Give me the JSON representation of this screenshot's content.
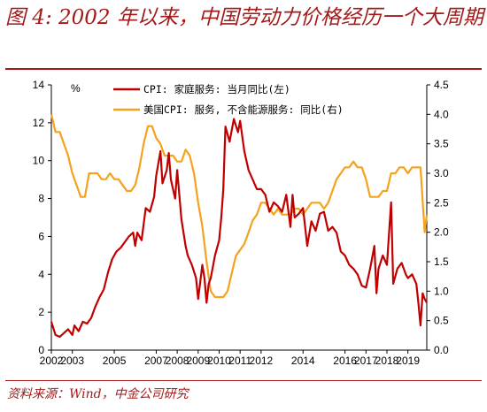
{
  "title": "图 4: 2002 年以来，中国劳动力价格经历一个大周期",
  "source": "资料来源：Wind，中金公司研究",
  "colors": {
    "accent": "#a21a1a",
    "series_left": "#c00000",
    "series_right": "#f5a21c"
  },
  "chart_data": {
    "type": "line",
    "left_axis": {
      "unit": "%",
      "ylim": [
        0,
        14
      ],
      "ticks": [
        0,
        2,
        4,
        6,
        8,
        10,
        12,
        14
      ]
    },
    "right_axis": {
      "ylim": [
        0,
        4.5
      ],
      "ticks": [
        "0.0",
        "0.5",
        "1.0",
        "1.5",
        "2.0",
        "2.5",
        "3.0",
        "3.5",
        "4.0",
        "4.5"
      ]
    },
    "x_axis": {
      "xlim": [
        2002,
        2019.9
      ],
      "ticks": [
        "2002",
        "2003",
        "2005",
        "2007",
        "2008",
        "2009",
        "2010",
        "2011",
        "2012",
        "2014",
        "2016",
        "2017",
        "2018",
        "2019"
      ]
    },
    "grid": false,
    "legend_position": "top",
    "series": [
      {
        "name": "CPI: 家庭服务: 当月同比(左)",
        "axis": "left",
        "x": [
          2002.0,
          2002.2,
          2002.4,
          2002.6,
          2002.8,
          2003.0,
          2003.1,
          2003.3,
          2003.5,
          2003.7,
          2003.9,
          2004.1,
          2004.3,
          2004.5,
          2004.7,
          2004.9,
          2005.1,
          2005.3,
          2005.5,
          2005.7,
          2005.9,
          2006.0,
          2006.1,
          2006.3,
          2006.5,
          2006.7,
          2006.9,
          2007.0,
          2007.2,
          2007.3,
          2007.5,
          2007.6,
          2007.7,
          2007.9,
          2008.0,
          2008.2,
          2008.4,
          2008.5,
          2008.7,
          2008.9,
          2009.0,
          2009.2,
          2009.3,
          2009.4,
          2009.5,
          2009.6,
          2009.8,
          2010.0,
          2010.1,
          2010.2,
          2010.3,
          2010.5,
          2010.7,
          2010.9,
          2011.0,
          2011.2,
          2011.4,
          2011.6,
          2011.8,
          2012.0,
          2012.2,
          2012.4,
          2012.6,
          2012.8,
          2013.0,
          2013.2,
          2013.4,
          2013.5,
          2013.6,
          2013.8,
          2014.0,
          2014.2,
          2014.4,
          2014.6,
          2014.8,
          2015.0,
          2015.2,
          2015.4,
          2015.6,
          2015.8,
          2016.0,
          2016.2,
          2016.4,
          2016.6,
          2016.8,
          2017.0,
          2017.2,
          2017.4,
          2017.5,
          2017.6,
          2017.8,
          2018.0,
          2018.2,
          2018.3,
          2018.5,
          2018.7,
          2018.9,
          2019.0,
          2019.2,
          2019.4,
          2019.5,
          2019.6,
          2019.7,
          2019.8,
          2019.9
        ],
        "values": [
          1.5,
          0.8,
          0.7,
          0.9,
          1.1,
          0.8,
          1.3,
          1.0,
          1.5,
          1.4,
          1.7,
          2.3,
          2.8,
          3.2,
          4.1,
          4.8,
          5.2,
          5.4,
          5.7,
          6.0,
          6.2,
          5.5,
          6.2,
          5.8,
          7.5,
          7.3,
          8.1,
          9.2,
          10.5,
          8.8,
          9.5,
          10.4,
          9.0,
          8.0,
          9.5,
          6.9,
          5.5,
          5.0,
          4.5,
          3.8,
          2.7,
          4.5,
          3.8,
          2.5,
          3.5,
          3.8,
          5.0,
          5.8,
          7.0,
          8.5,
          11.8,
          11.0,
          12.2,
          11.5,
          12.1,
          10.5,
          9.5,
          9.0,
          8.5,
          8.5,
          8.2,
          7.3,
          7.8,
          7.6,
          7.3,
          8.2,
          6.5,
          8.2,
          7.0,
          7.2,
          7.5,
          5.5,
          6.8,
          6.3,
          7.2,
          7.3,
          6.3,
          6.5,
          6.2,
          5.2,
          5.0,
          4.5,
          4.3,
          4.0,
          3.4,
          3.3,
          4.3,
          5.5,
          3.0,
          4.3,
          5.0,
          4.5,
          7.8,
          3.5,
          4.3,
          4.6,
          4.0,
          3.8,
          4.0,
          3.5,
          2.5,
          1.3,
          3.0,
          2.7,
          2.5
        ]
      },
      {
        "name": "美国CPI: 服务, 不含能源服务: 同比(右)",
        "axis": "right",
        "x": [
          2002.0,
          2002.2,
          2002.4,
          2002.6,
          2002.8,
          2003.0,
          2003.2,
          2003.4,
          2003.6,
          2003.8,
          2004.0,
          2004.2,
          2004.4,
          2004.6,
          2004.8,
          2005.0,
          2005.2,
          2005.4,
          2005.6,
          2005.8,
          2006.0,
          2006.2,
          2006.4,
          2006.6,
          2006.8,
          2007.0,
          2007.2,
          2007.4,
          2007.6,
          2007.8,
          2008.0,
          2008.2,
          2008.4,
          2008.6,
          2008.8,
          2009.0,
          2009.2,
          2009.4,
          2009.6,
          2009.8,
          2010.0,
          2010.2,
          2010.4,
          2010.6,
          2010.8,
          2011.0,
          2011.2,
          2011.4,
          2011.6,
          2011.8,
          2012.0,
          2012.2,
          2012.4,
          2012.6,
          2012.8,
          2013.0,
          2013.2,
          2013.4,
          2013.6,
          2013.8,
          2014.0,
          2014.2,
          2014.4,
          2014.6,
          2014.8,
          2015.0,
          2015.2,
          2015.4,
          2015.6,
          2015.8,
          2016.0,
          2016.2,
          2016.4,
          2016.6,
          2016.8,
          2017.0,
          2017.2,
          2017.4,
          2017.6,
          2017.8,
          2018.0,
          2018.2,
          2018.4,
          2018.6,
          2018.8,
          2019.0,
          2019.2,
          2019.4,
          2019.6,
          2019.8,
          2019.9
        ],
        "values": [
          4.0,
          3.7,
          3.7,
          3.5,
          3.3,
          3.0,
          2.8,
          2.6,
          2.6,
          3.0,
          3.0,
          3.0,
          2.9,
          2.9,
          3.0,
          2.9,
          2.9,
          2.8,
          2.7,
          2.7,
          2.8,
          3.1,
          3.5,
          3.8,
          3.8,
          3.6,
          3.5,
          3.3,
          3.3,
          3.3,
          3.2,
          3.2,
          3.4,
          3.3,
          3.0,
          2.5,
          2.1,
          1.5,
          1.0,
          0.9,
          0.9,
          0.9,
          1.0,
          1.3,
          1.6,
          1.7,
          1.8,
          2.0,
          2.2,
          2.3,
          2.5,
          2.5,
          2.4,
          2.3,
          2.4,
          2.3,
          2.3,
          2.3,
          2.4,
          2.4,
          2.3,
          2.4,
          2.5,
          2.5,
          2.5,
          2.4,
          2.5,
          2.7,
          2.9,
          3.0,
          3.1,
          3.1,
          3.2,
          3.1,
          3.1,
          2.9,
          2.6,
          2.6,
          2.6,
          2.7,
          2.7,
          3.0,
          3.0,
          3.1,
          3.1,
          3.0,
          3.1,
          3.1,
          3.1,
          2.0,
          2.3
        ]
      }
    ]
  }
}
